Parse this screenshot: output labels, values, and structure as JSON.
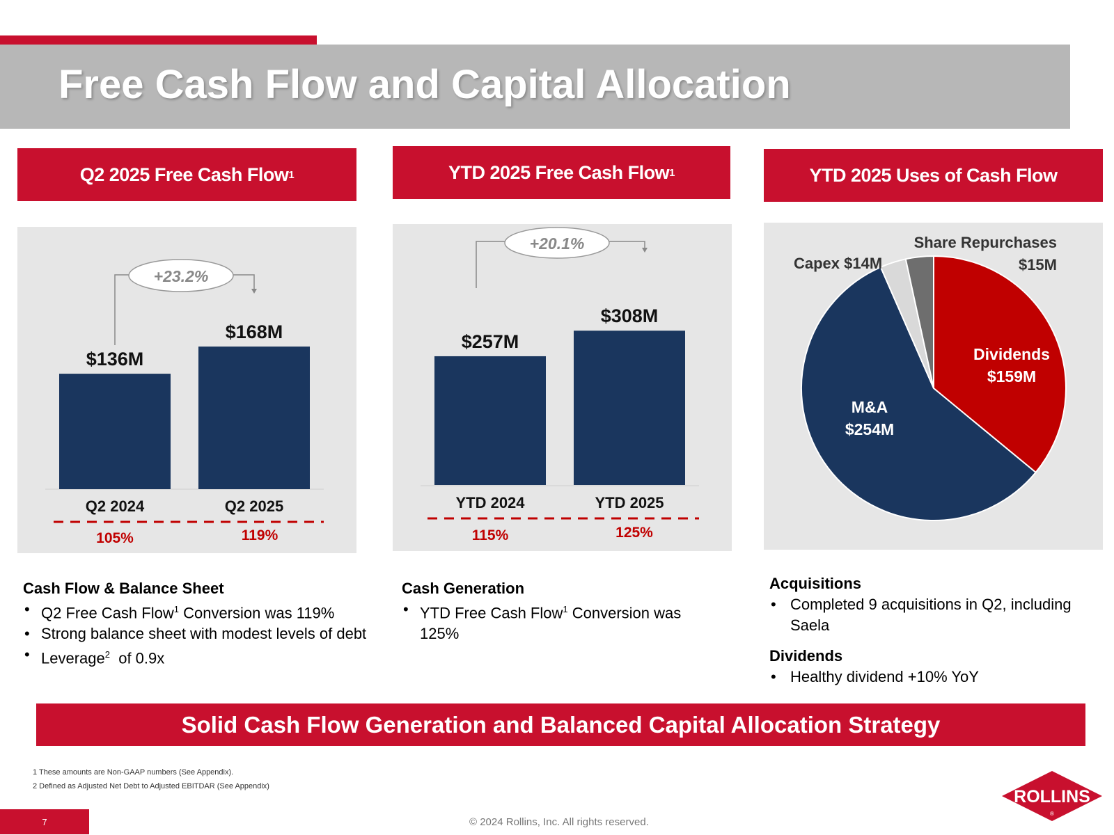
{
  "page": {
    "title": "Free Cash Flow and Capital Allocation",
    "page_number": "7",
    "copyright": "© 2024 Rollins, Inc. All rights reserved.",
    "logo_text": "ROLLINS",
    "banner": "Solid Cash Flow Generation and Balanced Capital Allocation Strategy",
    "footnotes": [
      "1 These amounts are Non-GAAP numbers (See Appendix).",
      "2 Defined as Adjusted Net Debt to Adjusted EBITDAR (See Appendix)"
    ]
  },
  "colors": {
    "red": "#c8102e",
    "navy": "#1a365e",
    "gray_band": "#b7b7b7",
    "panel_bg": "#e6e6e6",
    "pie_red": "#c00000",
    "pie_light": "#d9d9d9",
    "pie_dark": "#6e6e6e",
    "conversion_red": "#c00000"
  },
  "panels": [
    {
      "heading": "Q2 2025 Free Cash Flow",
      "heading_sup": "1"
    },
    {
      "heading": "YTD 2025 Free Cash Flow",
      "heading_sup": "1"
    },
    {
      "heading": "YTD 2025 Uses of Cash Flow"
    }
  ],
  "chart_data": [
    {
      "type": "bar",
      "categories": [
        "Q2 2024",
        "Q2 2025"
      ],
      "values": [
        136,
        168
      ],
      "value_labels": [
        "$136M",
        "$168M"
      ],
      "growth_label": "+23.2%",
      "conversion_labels": [
        "105%",
        "119%"
      ]
    },
    {
      "type": "bar",
      "categories": [
        "YTD 2024",
        "YTD 2025"
      ],
      "values": [
        257,
        308
      ],
      "value_labels": [
        "$257M",
        "$308M"
      ],
      "growth_label": "+20.1%",
      "conversion_labels": [
        "115%",
        "125%"
      ]
    },
    {
      "type": "pie",
      "slices": [
        {
          "label": "Dividends",
          "value_label": "$159M",
          "value": 159,
          "color": "#c00000"
        },
        {
          "label": "M&A",
          "value_label": "$254M",
          "value": 254,
          "color": "#1a365e"
        },
        {
          "label": "Capex",
          "value_label": "$14M",
          "value": 14,
          "color": "#d9d9d9"
        },
        {
          "label": "Share Repurchases",
          "value_label": "$15M",
          "value": 15,
          "color": "#6e6e6e"
        }
      ]
    }
  ],
  "text_blocks": {
    "cash_flow": {
      "heading": "Cash Flow & Balance Sheet",
      "b1_pre": "Q2 Free Cash Flow",
      "b1_sup": "1",
      "b1_post": " Conversion was 119%",
      "b2": "Strong balance sheet with modest levels of debt",
      "b3_pre": "Leverage",
      "b3_sup": "2",
      "b3_post": "  of 0.9x"
    },
    "cash_generation": {
      "heading": "Cash Generation",
      "b1_pre": "YTD Free Cash Flow",
      "b1_sup": "1",
      "b1_post": " Conversion was 125%"
    },
    "acquisitions": {
      "heading": "Acquisitions",
      "b1": "Completed 9 acquisitions in Q2, including Saela"
    },
    "dividends": {
      "heading": "Dividends",
      "b1": "Healthy dividend +10% YoY"
    }
  }
}
